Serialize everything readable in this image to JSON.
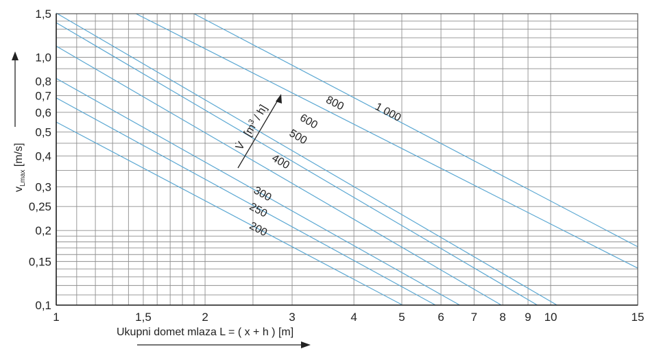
{
  "chart_data": {
    "type": "line",
    "x_scale": "log",
    "y_scale": "log",
    "xlim": [
      1,
      15
    ],
    "ylim": [
      0.1,
      1.5
    ],
    "grid": true,
    "xlabel": "Ukupni domet mlaza L = ( x + h ) [m]",
    "ylabel": "v",
    "ylabel_subscript": "Lmax",
    "ylabel_unit": " [m/s]",
    "series_axis_label": {
      "symbol": "V̇",
      "unit_open": "[m",
      "unit_sup": "3",
      "unit_close": " / h]"
    },
    "x_ticks": [
      {
        "value": 1,
        "label": "1"
      },
      {
        "value": 1.5,
        "label": "1,5"
      },
      {
        "value": 2,
        "label": "2"
      },
      {
        "value": 3,
        "label": "3"
      },
      {
        "value": 4,
        "label": "4"
      },
      {
        "value": 5,
        "label": "5"
      },
      {
        "value": 6,
        "label": "6"
      },
      {
        "value": 7,
        "label": "7"
      },
      {
        "value": 8,
        "label": "8"
      },
      {
        "value": 9,
        "label": "9"
      },
      {
        "value": 10,
        "label": "10"
      },
      {
        "value": 15,
        "label": "15"
      }
    ],
    "y_ticks": [
      {
        "value": 0.1,
        "label": "0,1"
      },
      {
        "value": 0.15,
        "label": "0,15"
      },
      {
        "value": 0.2,
        "label": "0,2"
      },
      {
        "value": 0.25,
        "label": "0,25"
      },
      {
        "value": 0.3,
        "label": "0,3"
      },
      {
        "value": 0.4,
        "label": "0,4"
      },
      {
        "value": 0.5,
        "label": "0,5"
      },
      {
        "value": 0.6,
        "label": "0,6"
      },
      {
        "value": 0.7,
        "label": "0,7"
      },
      {
        "value": 0.8,
        "label": "0,8"
      },
      {
        "value": 1.0,
        "label": "1,0"
      },
      {
        "value": 1.5,
        "label": "1,5"
      }
    ],
    "series": [
      {
        "name": "200",
        "x": [
          1,
          5.02
        ],
        "y": [
          0.548,
          0.1
        ],
        "label_at": [
          2.45,
          0.205
        ]
      },
      {
        "name": "250",
        "x": [
          1,
          5.85
        ],
        "y": [
          0.686,
          0.1
        ],
        "label_at": [
          2.45,
          0.245
        ]
      },
      {
        "name": "300",
        "x": [
          1,
          6.55
        ],
        "y": [
          0.822,
          0.1
        ],
        "label_at": [
          2.5,
          0.285
        ]
      },
      {
        "name": "400",
        "x": [
          1,
          7.95
        ],
        "y": [
          1.11,
          0.1
        ],
        "label_at": [
          2.72,
          0.385
        ]
      },
      {
        "name": "500",
        "x": [
          1,
          9.4
        ],
        "y": [
          1.38,
          0.1
        ],
        "label_at": [
          2.95,
          0.485
        ]
      },
      {
        "name": "600",
        "x": [
          1,
          10.3
        ],
        "y": [
          1.51,
          0.1
        ],
        "label_at": [
          3.1,
          0.56
        ]
      },
      {
        "name": "800",
        "x": [
          1.45,
          15
        ],
        "y": [
          1.5,
          0.141
        ],
        "label_at": [
          3.5,
          0.66
        ]
      },
      {
        "name": "1 000",
        "x": [
          1.9,
          15
        ],
        "y": [
          1.5,
          0.172
        ],
        "label_at": [
          4.4,
          0.62
        ]
      }
    ],
    "colors": {
      "line": "#5aa7d2",
      "grid": "#8e8e8e",
      "axis": "#222222",
      "text": "#222222"
    }
  }
}
